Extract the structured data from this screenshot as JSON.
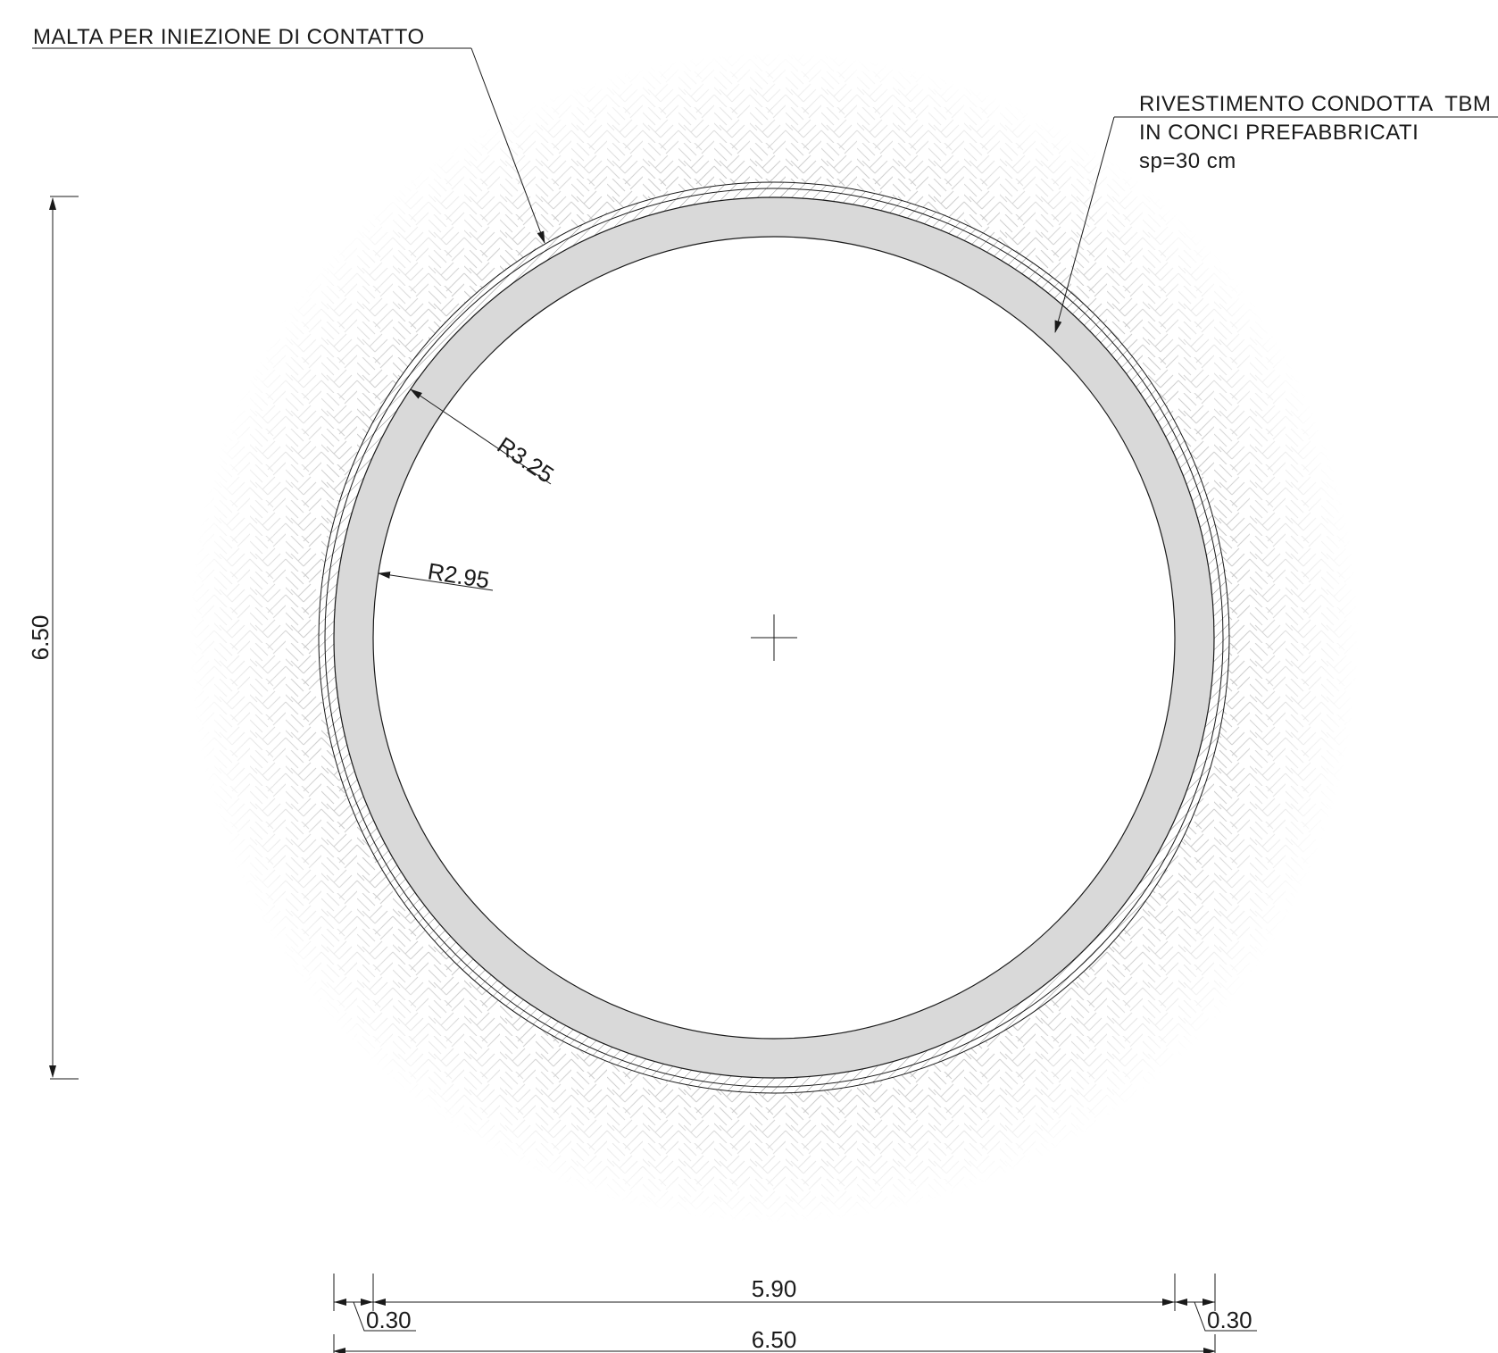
{
  "labels": {
    "grout": "MALTA PER INIEZIONE DI CONTATTO",
    "lining_line1": "RIVESTIMENTO CONDOTTA  TBM",
    "lining_line2": "IN CONCI PREFABBRICATI",
    "lining_line3": "sp=30 cm"
  },
  "dimensions": {
    "outer_radius": "R3.25",
    "inner_radius": "R2.95",
    "height_total": "6.50",
    "inner_width": "5.90",
    "left_thickness": "0.30",
    "right_thickness": "0.30",
    "width_total": "6.50"
  },
  "colors": {
    "lining_fill": "#d9d9d9",
    "hatch": "#b5b5b5",
    "line": "#1a1a1a"
  }
}
